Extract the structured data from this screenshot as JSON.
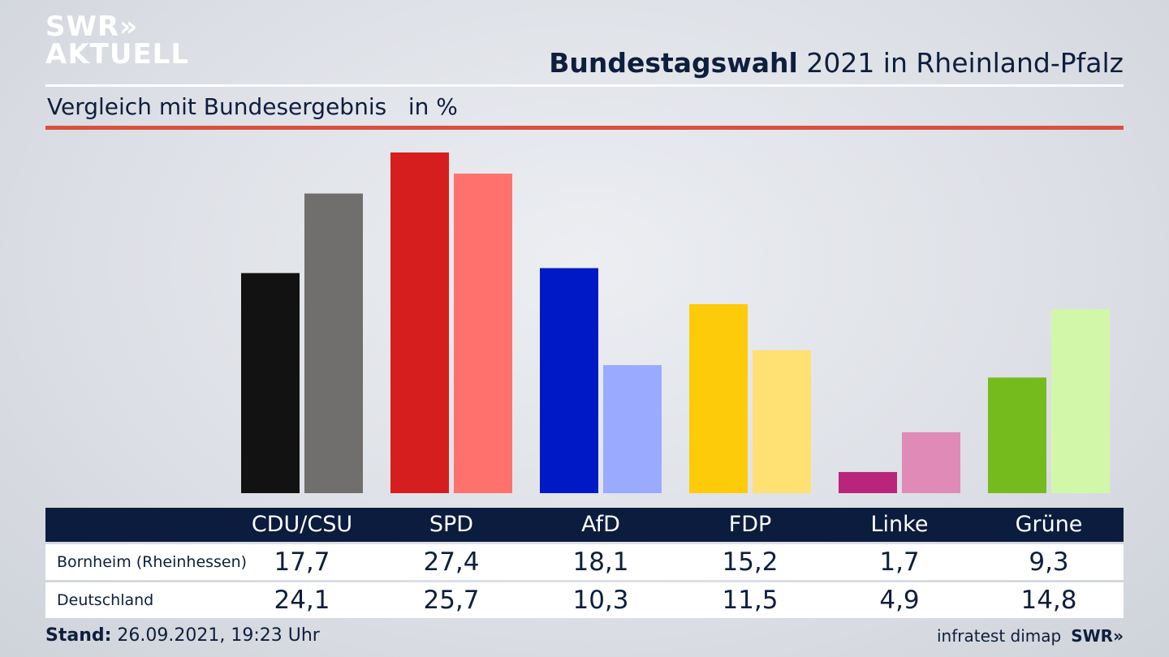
{
  "header": {
    "logo_line1": "SWR»",
    "logo_line2": "AKTUELL",
    "title_bold": "Bundestagswahl",
    "title_rest": " 2021 in Rheinland-Pfalz",
    "subtitle": "Vergleich mit Bundesergebnis   in %"
  },
  "chart_data": {
    "type": "bar",
    "categories": [
      "CDU/CSU",
      "SPD",
      "AfD",
      "FDP",
      "Linke",
      "Grüne"
    ],
    "series": [
      {
        "name": "Bornheim (Rheinhessen)",
        "values": [
          17.7,
          27.4,
          18.1,
          15.2,
          1.7,
          9.3
        ],
        "colors": [
          "#121212",
          "#d61e1e",
          "#0019c7",
          "#fecb0a",
          "#b8257a",
          "#76bb1d"
        ]
      },
      {
        "name": "Deutschland",
        "values": [
          24.1,
          25.7,
          10.3,
          11.5,
          4.9,
          14.8
        ],
        "colors": [
          "#706f6d",
          "#ff716c",
          "#9aaafe",
          "#fee073",
          "#e08ab8",
          "#d3f7a8"
        ]
      }
    ],
    "value_labels": [
      [
        "17,7",
        "27,4",
        "18,1",
        "15,2",
        "1,7",
        "9,3"
      ],
      [
        "24,1",
        "25,7",
        "10,3",
        "11,5",
        "4,9",
        "14,8"
      ]
    ],
    "ylim": [
      0,
      27.4
    ]
  },
  "footer": {
    "stand_label": "Stand:",
    "stand_value": " 26.09.2021, 19:23 Uhr",
    "source": "infratest dimap",
    "brand": "SWR»"
  }
}
